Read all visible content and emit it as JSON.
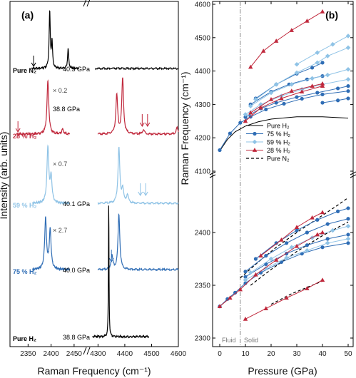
{
  "colors": {
    "h2": "#000000",
    "c75": "#2f6db5",
    "c59": "#8fc3e6",
    "c28": "#c0283c",
    "n2": "#000000",
    "divider": "#888888"
  },
  "chart_data": [
    {
      "type": "line",
      "panel_label": "(a)",
      "xlabel": "Raman Frequency (cm⁻¹)",
      "ylabel": "Intensity (arb. units)",
      "x_ticks_left": [
        "2350",
        "2400",
        "2450"
      ],
      "x_ticks_right": [
        "4300",
        "4400",
        "4500",
        "4600"
      ],
      "xlim_left": [
        2320,
        2475
      ],
      "xlim_right": [
        4275,
        4600
      ],
      "spectra": [
        {
          "label": "Pure N₂",
          "pressure": "40.5 GPa",
          "color": "#000000",
          "scale_note": "",
          "arrows_left": [
            2362
          ],
          "arrows_right": [],
          "peaks_left": [
            [
              2397,
              1.0
            ],
            [
              2402,
              0.45
            ],
            [
              2437,
              0.35
            ]
          ],
          "peaks_right": []
        },
        {
          "label": "28 % H₂",
          "pressure": "38.8 GPa",
          "color": "#c0283c",
          "scale_note": "× 0.2",
          "arrows_left": [
            2328
          ],
          "arrows_right": [
            4465,
            4485
          ],
          "peaks_left": [
            [
              2393,
              0.95
            ],
            [
              2425,
              0.08
            ]
          ],
          "peaks_right": [
            [
              4370,
              0.7
            ],
            [
              4392,
              1.0
            ],
            [
              4470,
              0.08
            ],
            [
              4595,
              0.12
            ]
          ]
        },
        {
          "label": "59 % H₂",
          "pressure": "40.1 GPa",
          "color": "#8fc3e6",
          "scale_note": "× 0.7",
          "arrows_left": [],
          "arrows_right": [
            4458,
            4478
          ],
          "peaks_left": [
            [
              2393,
              1.0
            ],
            [
              2400,
              0.45
            ]
          ],
          "peaks_right": [
            [
              4378,
              1.0
            ],
            [
              4392,
              0.25
            ],
            [
              4410,
              0.15
            ]
          ]
        },
        {
          "label": "75 % H₂",
          "pressure": "40.0 GPa",
          "color": "#2f6db5",
          "scale_note": "× 2.7",
          "arrows_left": [],
          "arrows_right": [
            4350
          ],
          "peaks_left": [
            [
              2388,
              0.9
            ],
            [
              2398,
              0.7
            ]
          ],
          "peaks_right": [
            [
              4352,
              0.25
            ],
            [
              4378,
              1.0
            ]
          ]
        },
        {
          "label": "Pure H₂",
          "pressure": "38.8 GPa",
          "color": "#000000",
          "scale_note": "",
          "arrows_left": [],
          "arrows_right": [],
          "peaks_left": [],
          "peaks_right": [
            [
              4340,
              1.0
            ]
          ]
        }
      ]
    },
    {
      "type": "scatter",
      "panel_label": "(b)",
      "xlabel": "Pressure (GPa)",
      "ylabel": "Raman Frequency (cm⁻¹)",
      "xlim": [
        -2,
        52
      ],
      "x_ticks": [
        "0",
        "10",
        "20",
        "30",
        "40",
        "50"
      ],
      "y_upper_ticks": [
        "4100",
        "4200",
        "4300",
        "4400",
        "4500",
        "4600"
      ],
      "y_lower_ticks": [
        "2300",
        "2350",
        "2400"
      ],
      "ylim_upper": [
        4100,
        4600
      ],
      "ylim_lower": [
        2285,
        2440
      ],
      "fluid_solid_pressure": 8,
      "fluid_label": "Fluid",
      "solid_label": "Solid",
      "legend": [
        {
          "label": "Pure H₂",
          "style": "line",
          "color": "#000000"
        },
        {
          "label": "75 % H₂",
          "style": "circle",
          "color": "#2f6db5"
        },
        {
          "label": "59 % H₂",
          "style": "diamond",
          "color": "#8fc3e6"
        },
        {
          "label": "28 % H₂",
          "style": "triangle",
          "color": "#c0283c"
        },
        {
          "label": "Pure N₂",
          "style": "dashed",
          "color": "#000000"
        }
      ],
      "series_upper": [
        {
          "name": "Pure H₂",
          "kind": "line",
          "color": "#000000",
          "points": [
            [
              0,
              4161
            ],
            [
              3,
              4195
            ],
            [
              6,
              4218
            ],
            [
              10,
              4235
            ],
            [
              15,
              4248
            ],
            [
              20,
              4256
            ],
            [
              30,
              4263
            ],
            [
              40,
              4263
            ],
            [
              50,
              4259
            ]
          ]
        },
        {
          "name": "75 % H₂",
          "color": "#2f6db5",
          "marker": "circle",
          "points": [
            [
              0,
              4163
            ],
            [
              4,
              4213
            ],
            [
              8,
              4245
            ],
            [
              12,
              4263
            ],
            [
              18,
              4285
            ],
            [
              25,
              4302
            ],
            [
              32,
              4317
            ],
            [
              40,
              4330
            ],
            [
              50,
              4340
            ]
          ]
        },
        {
          "name": "75 % H₂",
          "color": "#2f6db5",
          "marker": "circle",
          "points": [
            [
              10,
              4262
            ],
            [
              16,
              4288
            ],
            [
              22,
              4305
            ],
            [
              30,
              4322
            ],
            [
              38,
              4335
            ],
            [
              46,
              4348
            ],
            [
              50,
              4355
            ]
          ]
        },
        {
          "name": "75 % H₂",
          "color": "#2f6db5",
          "marker": "circle",
          "points": [
            [
              12,
              4300
            ],
            [
              20,
              4338
            ],
            [
              27,
              4360
            ],
            [
              34,
              4375
            ],
            [
              40,
              4385
            ]
          ]
        },
        {
          "name": "75 % H₂",
          "color": "#2f6db5",
          "marker": "circle",
          "points": [
            [
              14,
              4318
            ],
            [
              22,
              4360
            ],
            [
              30,
              4392
            ],
            [
              36,
              4410
            ],
            [
              40,
              4425
            ]
          ]
        },
        {
          "name": "75 % H₂",
          "color": "#2f6db5",
          "marker": "circle",
          "points": [
            [
              40,
              4305
            ],
            [
              46,
              4312
            ],
            [
              50,
              4318
            ]
          ]
        },
        {
          "name": "59 % H₂",
          "color": "#8fc3e6",
          "marker": "diamond",
          "points": [
            [
              10,
              4270
            ],
            [
              16,
              4300
            ],
            [
              24,
              4325
            ],
            [
              32,
              4345
            ],
            [
              40,
              4360
            ],
            [
              50,
              4375
            ]
          ]
        },
        {
          "name": "59 % H₂",
          "color": "#8fc3e6",
          "marker": "diamond",
          "points": [
            [
              12,
              4295
            ],
            [
              20,
              4335
            ],
            [
              28,
              4360
            ],
            [
              36,
              4378
            ],
            [
              42,
              4388
            ],
            [
              50,
              4405
            ]
          ]
        },
        {
          "name": "59 % H₂",
          "color": "#8fc3e6",
          "marker": "diamond",
          "points": [
            [
              14,
              4315
            ],
            [
              22,
              4360
            ],
            [
              30,
              4395
            ],
            [
              38,
              4425
            ],
            [
              42,
              4445
            ],
            [
              50,
              4470
            ]
          ]
        },
        {
          "name": "59 % H₂",
          "color": "#8fc3e6",
          "marker": "diamond",
          "points": [
            [
              30,
              4420
            ],
            [
              38,
              4455
            ],
            [
              44,
              4480
            ],
            [
              50,
              4505
            ]
          ]
        },
        {
          "name": "28 % H₂",
          "color": "#c0283c",
          "marker": "triangle",
          "points": [
            [
              10,
              4250
            ],
            [
              16,
              4290
            ],
            [
              24,
              4318
            ],
            [
              32,
              4338
            ],
            [
              40,
              4355
            ]
          ]
        },
        {
          "name": "28 % H₂",
          "color": "#c0283c",
          "marker": "triangle",
          "points": [
            [
              12,
              4275
            ],
            [
              20,
              4315
            ],
            [
              28,
              4340
            ],
            [
              36,
              4355
            ],
            [
              40,
              4362
            ]
          ]
        },
        {
          "name": "28 % H₂",
          "color": "#c0283c",
          "marker": "triangle",
          "points": [
            [
              12,
              4412
            ],
            [
              17,
              4460
            ],
            [
              22,
              4490
            ],
            [
              28,
              4522
            ],
            [
              34,
              4550
            ],
            [
              40,
              4578
            ]
          ]
        }
      ],
      "series_lower": [
        {
          "name": "Pure N₂",
          "kind": "dashed",
          "color": "#000000",
          "points": [
            [
              8,
              2357
            ],
            [
              15,
              2372
            ],
            [
              22,
              2386
            ],
            [
              30,
              2400
            ],
            [
              38,
              2413
            ],
            [
              46,
              2426
            ],
            [
              50,
              2433
            ]
          ]
        },
        {
          "name": "Pure N₂",
          "kind": "dashed",
          "color": "#000000",
          "points": [
            [
              12,
              2350
            ],
            [
              20,
              2365
            ],
            [
              30,
              2382
            ],
            [
              40,
              2397
            ],
            [
              50,
              2410
            ]
          ]
        },
        {
          "name": "Pure N₂",
          "kind": "dashed",
          "color": "#000000",
          "points": [
            [
              20,
              2332
            ],
            [
              28,
              2342
            ],
            [
              36,
              2350
            ],
            [
              40,
              2354
            ]
          ]
        },
        {
          "name": "75 % H₂",
          "color": "#2f6db5",
          "marker": "circle",
          "points": [
            [
              0,
              2330
            ],
            [
              3,
              2337
            ],
            [
              6,
              2343
            ],
            [
              10,
              2352
            ],
            [
              16,
              2362
            ],
            [
              24,
              2372
            ],
            [
              32,
              2380
            ],
            [
              40,
              2386
            ],
            [
              50,
              2390
            ]
          ]
        },
        {
          "name": "75 % H₂",
          "color": "#2f6db5",
          "marker": "circle",
          "points": [
            [
              10,
              2358
            ],
            [
              18,
              2370
            ],
            [
              26,
              2380
            ],
            [
              34,
              2388
            ],
            [
              42,
              2394
            ],
            [
              50,
              2398
            ]
          ]
        },
        {
          "name": "75 % H₂",
          "color": "#2f6db5",
          "marker": "circle",
          "points": [
            [
              10,
              2363
            ],
            [
              18,
              2378
            ],
            [
              26,
              2390
            ],
            [
              34,
              2400
            ],
            [
              42,
              2408
            ],
            [
              50,
              2413
            ]
          ]
        },
        {
          "name": "75 % H₂",
          "color": "#2f6db5",
          "marker": "circle",
          "points": [
            [
              14,
              2375
            ],
            [
              22,
              2390
            ],
            [
              30,
              2402
            ],
            [
              38,
              2412
            ],
            [
              46,
              2420
            ],
            [
              50,
              2423
            ]
          ]
        },
        {
          "name": "59 % H₂",
          "color": "#8fc3e6",
          "marker": "diamond",
          "points": [
            [
              10,
              2355
            ],
            [
              18,
              2366
            ],
            [
              26,
              2376
            ],
            [
              34,
              2383
            ],
            [
              42,
              2390
            ],
            [
              50,
              2394
            ]
          ]
        },
        {
          "name": "59 % H₂",
          "color": "#8fc3e6",
          "marker": "diamond",
          "points": [
            [
              12,
              2362
            ],
            [
              20,
              2375
            ],
            [
              28,
              2386
            ],
            [
              36,
              2395
            ],
            [
              44,
              2402
            ],
            [
              50,
              2406
            ]
          ]
        },
        {
          "name": "28 % H₂",
          "color": "#c0283c",
          "marker": "triangle",
          "points": [
            [
              0,
              2330
            ],
            [
              4,
              2338
            ],
            [
              8,
              2346
            ],
            [
              14,
              2360
            ],
            [
              22,
              2374
            ],
            [
              30,
              2387
            ],
            [
              38,
              2398
            ],
            [
              40,
              2400
            ]
          ]
        },
        {
          "name": "28 % H₂",
          "color": "#c0283c",
          "marker": "triangle",
          "points": [
            [
              16,
              2378
            ],
            [
              24,
              2393
            ],
            [
              30,
              2405
            ],
            [
              36,
              2414
            ],
            [
              40,
              2419
            ]
          ]
        },
        {
          "name": "28 % H₂",
          "color": "#c0283c",
          "marker": "triangle",
          "points": [
            [
              10,
              2318
            ],
            [
              18,
              2328
            ],
            [
              26,
              2338
            ],
            [
              34,
              2347
            ],
            [
              40,
              2355
            ]
          ]
        }
      ]
    }
  ]
}
